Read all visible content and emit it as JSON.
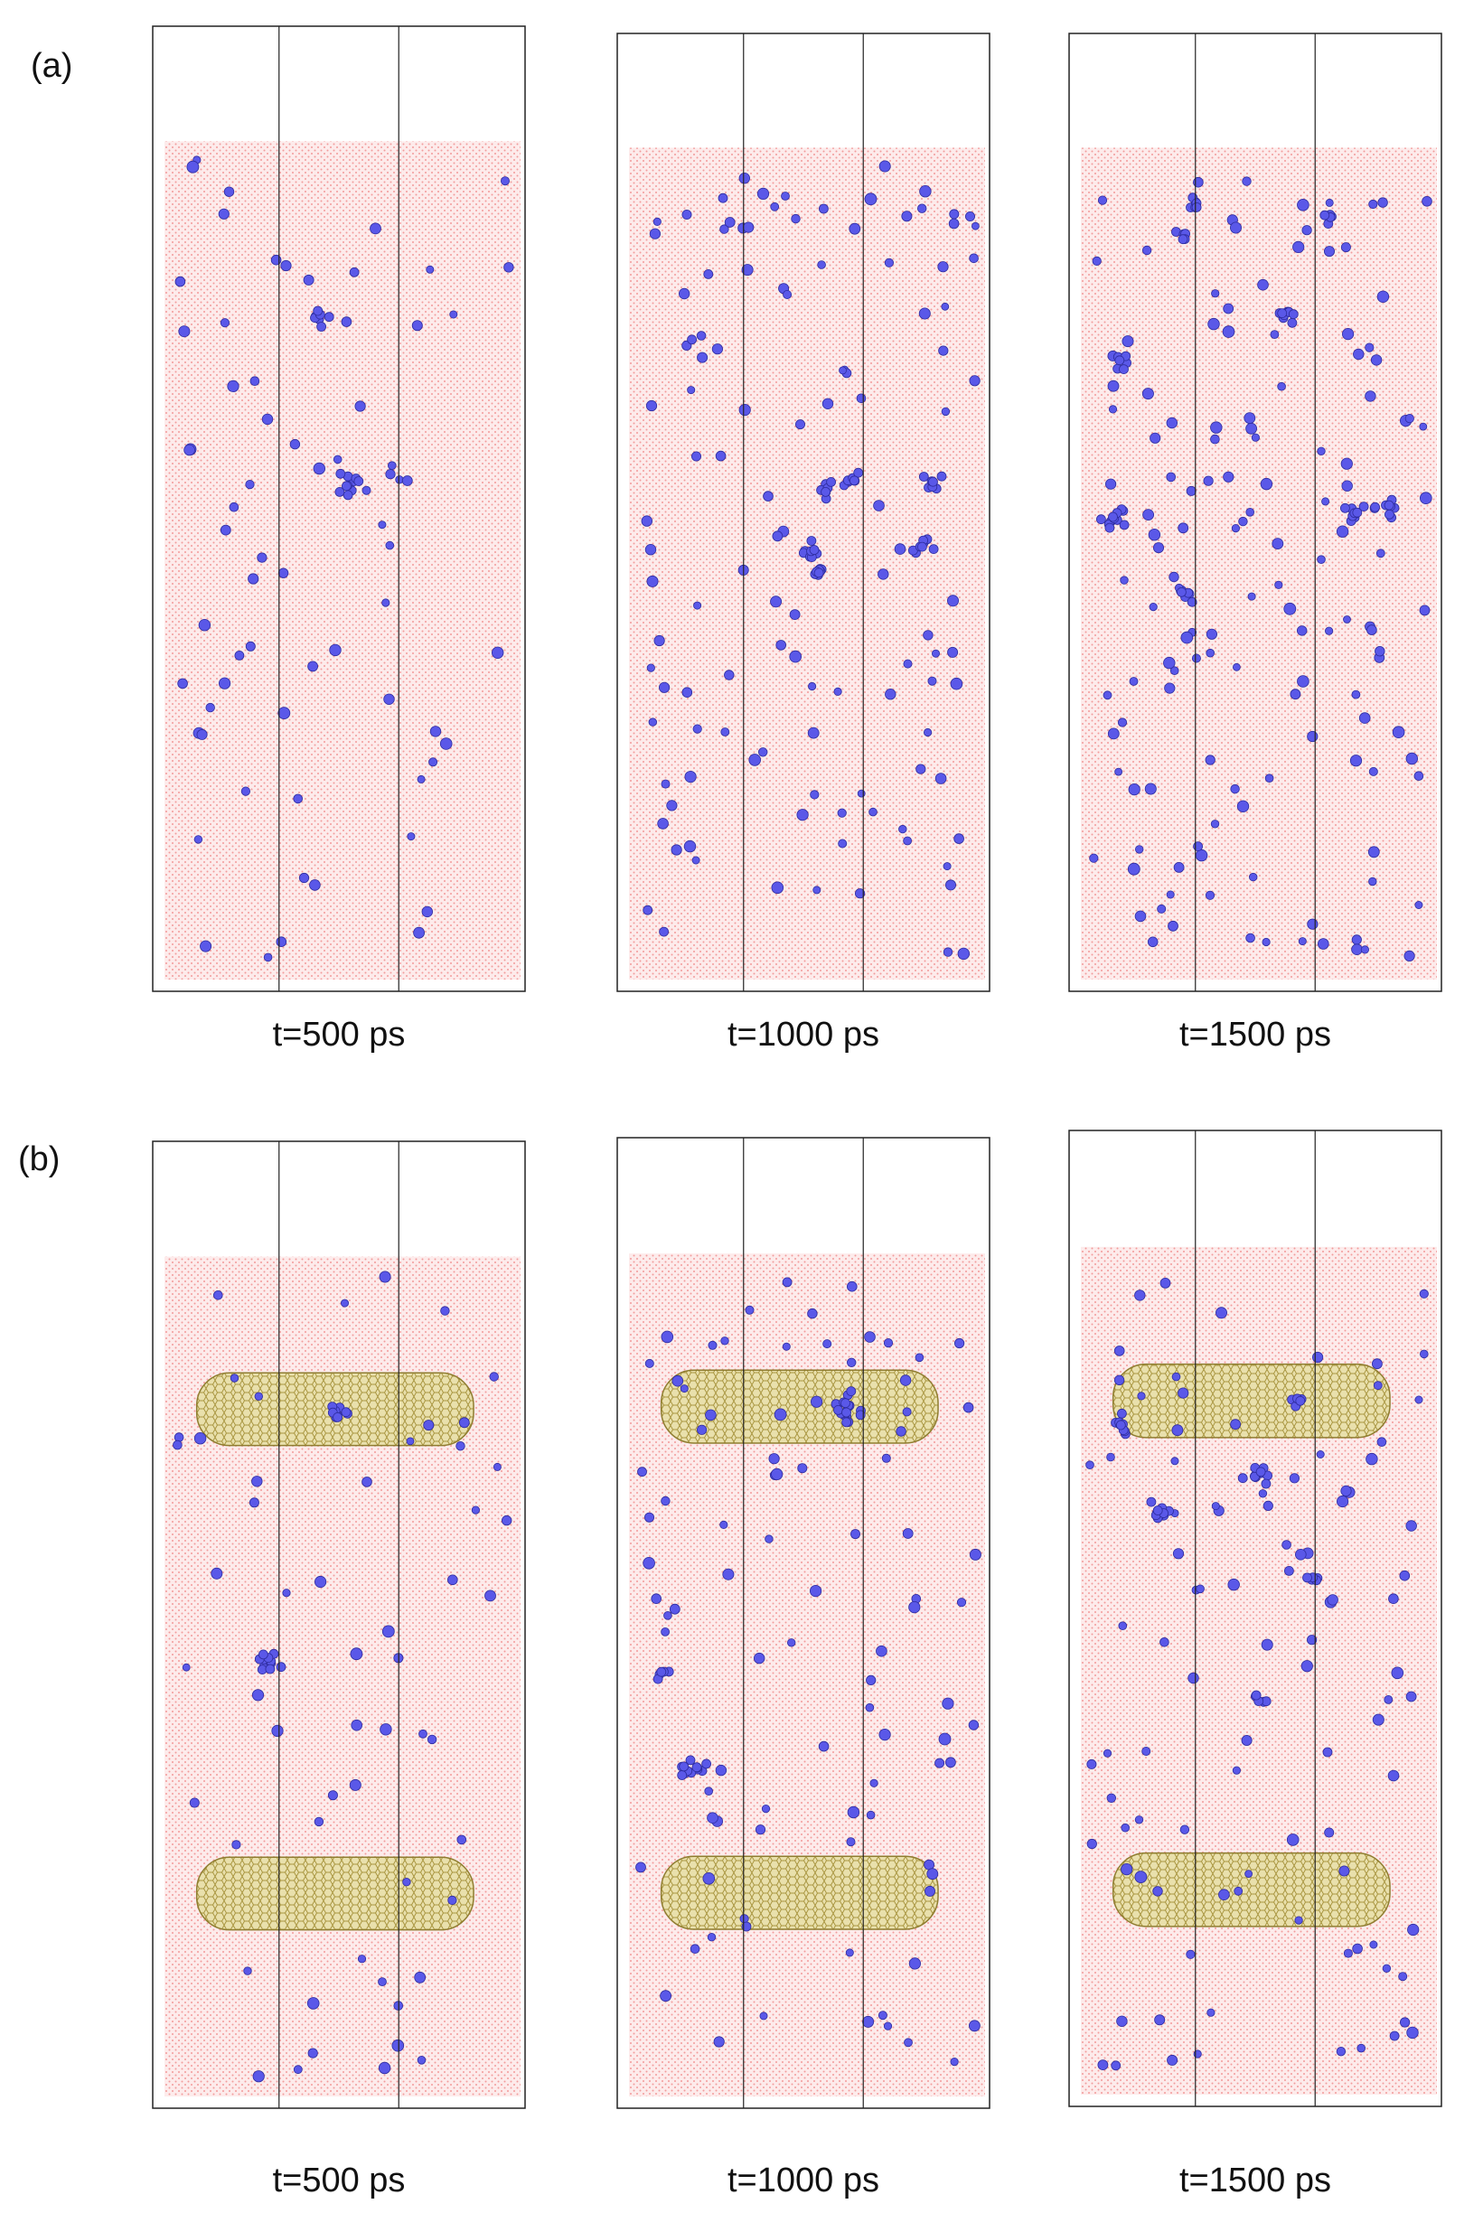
{
  "figure": {
    "row_a": {
      "label": "(a)",
      "panels": [
        {
          "caption": "t=500 ps"
        },
        {
          "caption": "t=1000 ps"
        },
        {
          "caption": "t=1500 ps"
        }
      ]
    },
    "row_b": {
      "label": "(b)",
      "panels": [
        {
          "caption": "t=500 ps"
        },
        {
          "caption": "t=1000 ps"
        },
        {
          "caption": "t=1500 ps"
        }
      ]
    }
  },
  "colors": {
    "matrix": "#f08a8a",
    "defect": "#5a58e8",
    "nanotube": "#cfc07a",
    "frame": "#222222"
  }
}
